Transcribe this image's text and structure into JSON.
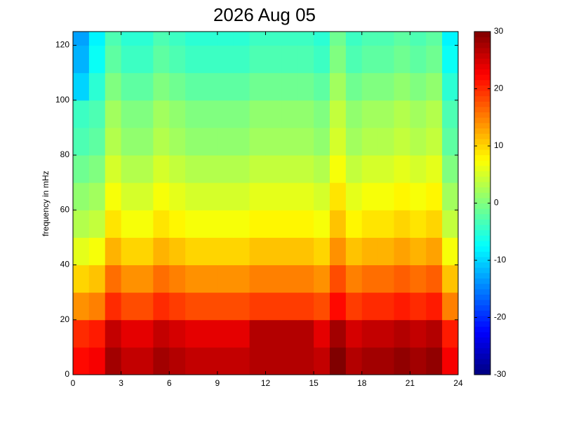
{
  "chart_data": {
    "type": "heatmap",
    "title": "2026 Aug 05",
    "y_label": "frequency in mHz",
    "xbins": [
      0,
      1,
      2,
      3,
      4,
      5,
      6,
      7,
      8,
      9,
      10,
      11,
      12,
      13,
      14,
      15,
      16,
      17,
      18,
      19,
      20,
      21,
      22,
      23,
      24
    ],
    "ybins": [
      0,
      10,
      20,
      30,
      40,
      50,
      60,
      70,
      80,
      90,
      100,
      110,
      120,
      125
    ],
    "values": [
      [
        22,
        23,
        28,
        26,
        26,
        28,
        27,
        26,
        26,
        26,
        26,
        27,
        27,
        27,
        27,
        26,
        30,
        27,
        28,
        28,
        29,
        28,
        29,
        23
      ],
      [
        20,
        21,
        26,
        24,
        24,
        26,
        25,
        24,
        24,
        24,
        24,
        27,
        27,
        27,
        27,
        24,
        28,
        25,
        26,
        26,
        27,
        26,
        27,
        21
      ],
      [
        14,
        15,
        20,
        18,
        18,
        20,
        19,
        18,
        18,
        18,
        18,
        19,
        19,
        19,
        19,
        18,
        22,
        19,
        20,
        20,
        21,
        20,
        21,
        15
      ],
      [
        10,
        11,
        16,
        14,
        14,
        16,
        15,
        14,
        14,
        14,
        14,
        15,
        15,
        15,
        15,
        14,
        18,
        15,
        16,
        16,
        17,
        16,
        17,
        11
      ],
      [
        6,
        7,
        12,
        10,
        10,
        12,
        11,
        10,
        10,
        10,
        10,
        11,
        11,
        11,
        11,
        10,
        14,
        11,
        12,
        12,
        13,
        12,
        13,
        7
      ],
      [
        3,
        4,
        9,
        7,
        7,
        9,
        8,
        7,
        7,
        7,
        7,
        8,
        8,
        8,
        8,
        7,
        11,
        8,
        9,
        9,
        10,
        9,
        10,
        4
      ],
      [
        1,
        2,
        7,
        5,
        5,
        7,
        6,
        5,
        5,
        5,
        5,
        6,
        6,
        6,
        6,
        5,
        9,
        6,
        7,
        7,
        8,
        7,
        8,
        2
      ],
      [
        -1,
        0,
        5,
        3,
        3,
        5,
        4,
        3,
        3,
        3,
        3,
        4,
        4,
        4,
        4,
        3,
        7,
        4,
        5,
        5,
        6,
        5,
        6,
        0
      ],
      [
        -3,
        -2,
        3,
        1,
        1,
        3,
        2,
        1,
        1,
        1,
        1,
        2,
        2,
        2,
        2,
        1,
        5,
        2,
        3,
        3,
        4,
        3,
        4,
        -2
      ],
      [
        -4,
        -3,
        2,
        0,
        0,
        2,
        1,
        0,
        0,
        0,
        0,
        1,
        1,
        1,
        1,
        0,
        4,
        1,
        2,
        2,
        3,
        2,
        3,
        -3
      ],
      [
        -10,
        -5,
        0,
        -2,
        -2,
        0,
        -1,
        -2,
        -2,
        -2,
        -2,
        -1,
        -1,
        -1,
        -1,
        -2,
        2,
        -1,
        0,
        0,
        1,
        0,
        1,
        -5
      ],
      [
        -12,
        -7,
        -2,
        -4,
        -4,
        -2,
        -3,
        -4,
        -4,
        -4,
        -4,
        -3,
        -3,
        -3,
        -3,
        -4,
        0,
        -3,
        -2,
        -2,
        -1,
        -2,
        -1,
        -7
      ],
      [
        -13,
        -8,
        -3,
        -5,
        -5,
        -3,
        -4,
        -5,
        -5,
        -5,
        -5,
        -4,
        -4,
        -4,
        -4,
        -5,
        -1,
        -4,
        -3,
        -3,
        -2,
        -3,
        -2,
        -8
      ]
    ],
    "xlim": [
      0,
      24
    ],
    "xticks": [
      0,
      3,
      6,
      9,
      12,
      15,
      18,
      21,
      24
    ],
    "ylim": [
      0,
      125
    ],
    "yticks": [
      0,
      20,
      40,
      60,
      80,
      100,
      120
    ],
    "colormap": "jet",
    "clim": [
      -30,
      30
    ],
    "cticks": [
      -30,
      -20,
      -10,
      0,
      10,
      20,
      30
    ]
  }
}
